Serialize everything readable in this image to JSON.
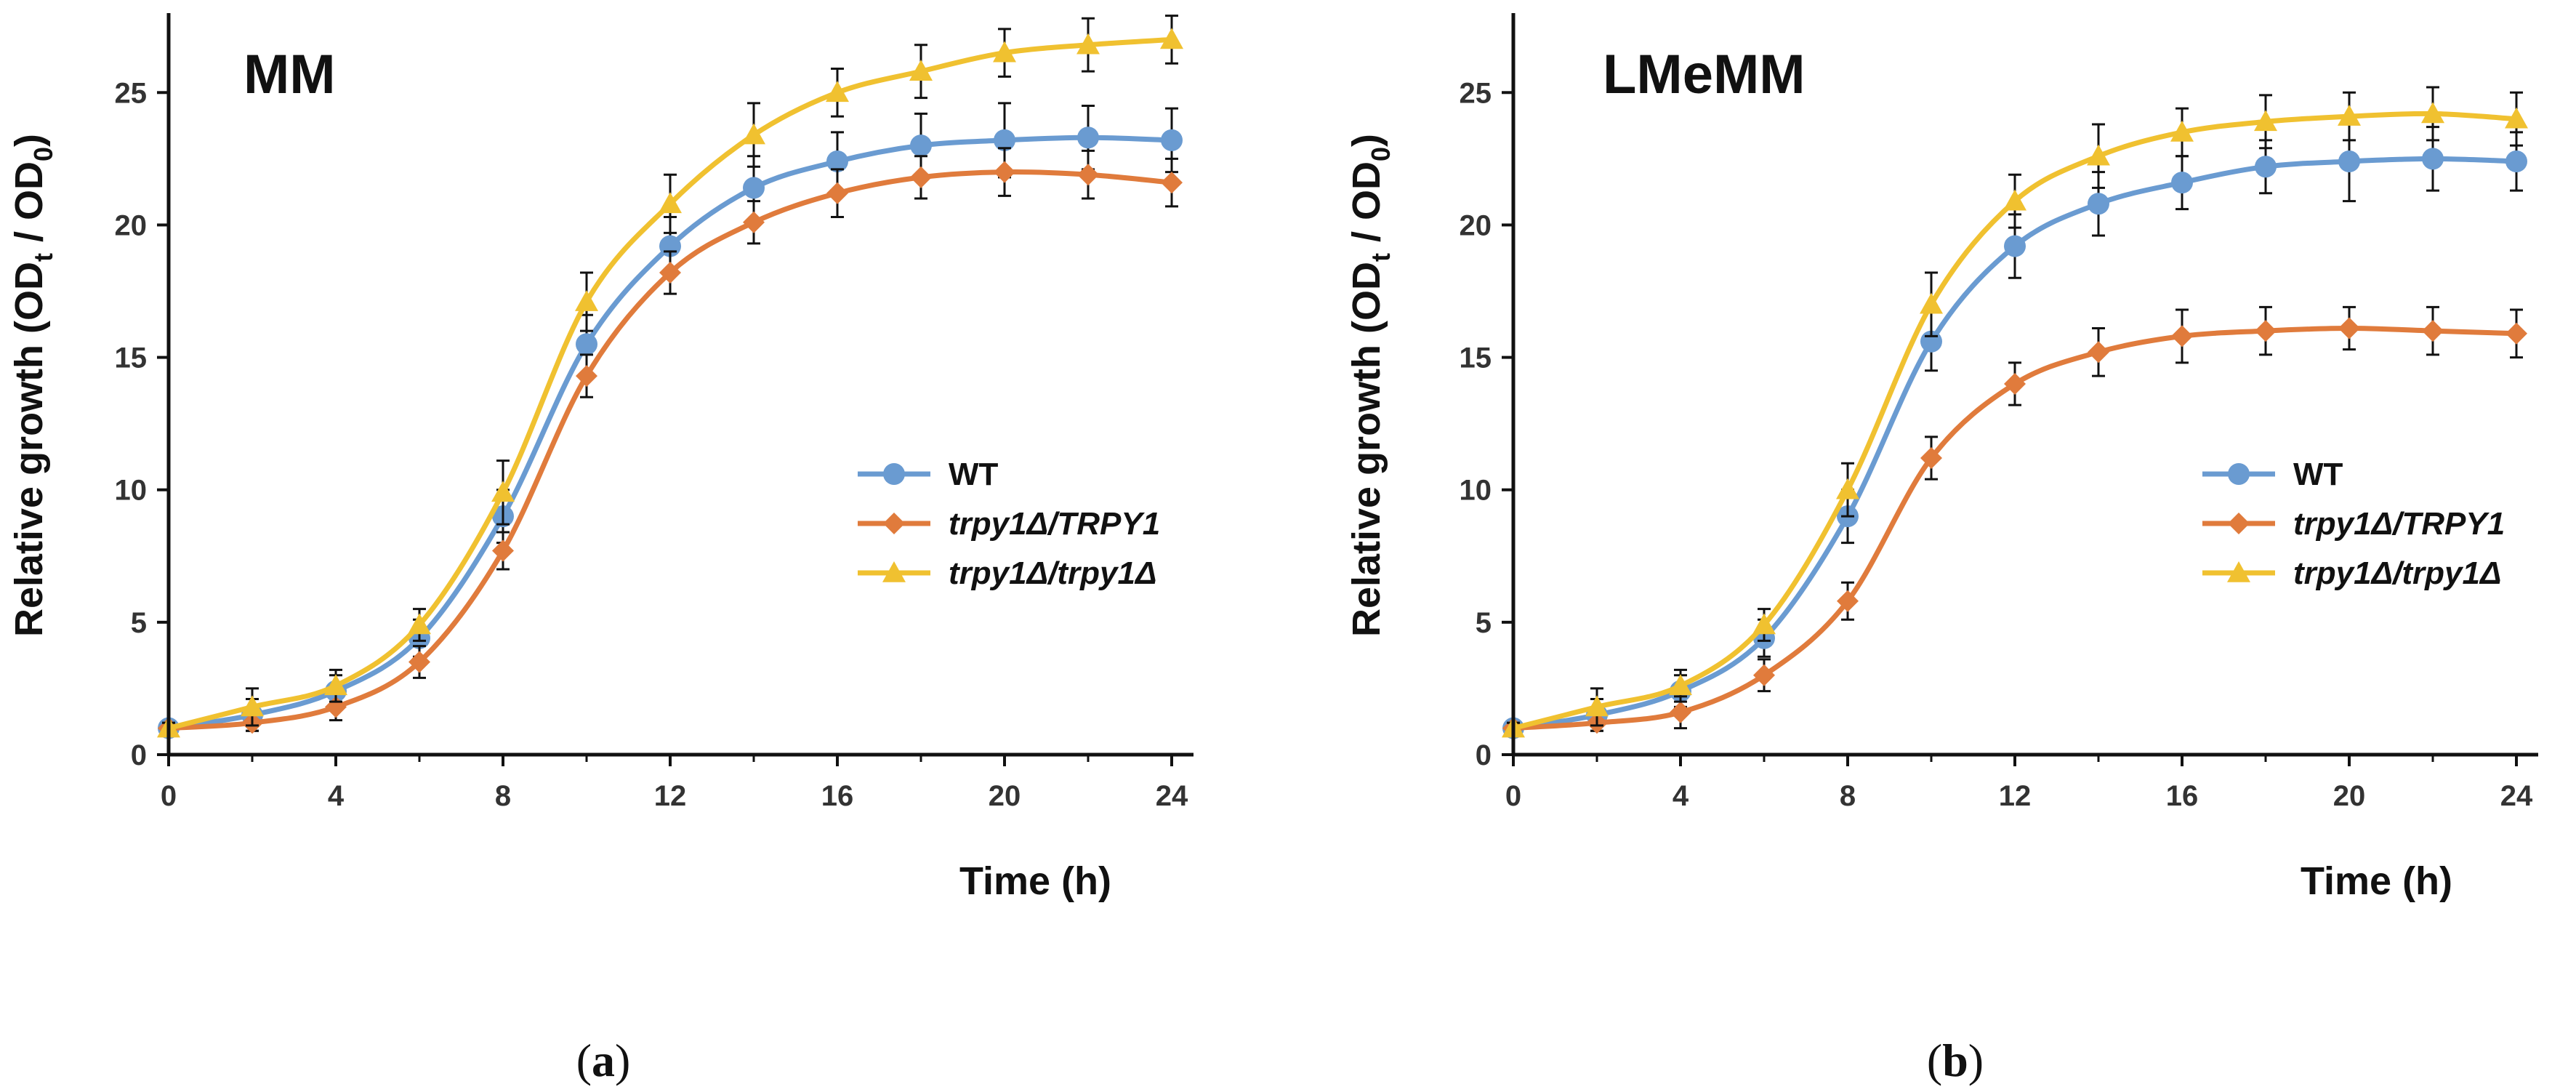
{
  "chart_data": [
    {
      "type": "line",
      "panel": "a",
      "title": "MM",
      "caption_letter": "a",
      "xlabel": "Time (h)",
      "ylabel_prefix": "Relative growth (OD",
      "ylabel_sub1": "t",
      "ylabel_mid": " / OD",
      "ylabel_sub2": "0",
      "ylabel_suffix": ")",
      "xlim": [
        0,
        24
      ],
      "ylim": [
        0,
        28
      ],
      "xticks": [
        0,
        4,
        8,
        12,
        16,
        20,
        24
      ],
      "yticks": [
        0,
        5,
        10,
        15,
        20,
        25
      ],
      "grid": false,
      "legend_position": "center-right",
      "x": [
        0,
        2,
        4,
        6,
        8,
        10,
        12,
        14,
        16,
        18,
        20,
        22,
        24
      ],
      "series": [
        {
          "name": "WT",
          "italic": false,
          "color": "#6a9bd1",
          "marker": "circle",
          "values": [
            1.0,
            1.5,
            2.4,
            4.4,
            9.0,
            15.5,
            19.2,
            21.4,
            22.4,
            23.0,
            23.2,
            23.3,
            23.2
          ],
          "errors": [
            0.2,
            0.6,
            0.6,
            0.7,
            1.0,
            1.1,
            1.1,
            1.2,
            1.1,
            1.2,
            1.4,
            1.2,
            1.2
          ]
        },
        {
          "name": "trpy1Δ/TRPY1",
          "italic": true,
          "color": "#e07b3c",
          "marker": "diamond",
          "values": [
            1.0,
            1.2,
            1.8,
            3.5,
            7.7,
            14.3,
            18.2,
            20.1,
            21.2,
            21.8,
            22.0,
            21.9,
            21.6
          ],
          "errors": [
            0.2,
            0.3,
            0.5,
            0.6,
            0.7,
            0.8,
            0.8,
            0.8,
            0.9,
            0.8,
            0.9,
            0.9,
            0.9
          ]
        },
        {
          "name": "trpy1Δ/trpy1Δ",
          "italic": true,
          "color": "#f0c130",
          "marker": "triangle",
          "values": [
            1.0,
            1.8,
            2.6,
            4.9,
            9.9,
            17.1,
            20.8,
            23.4,
            25.0,
            25.8,
            26.5,
            26.8,
            27.0
          ],
          "errors": [
            0.2,
            0.7,
            0.6,
            0.6,
            1.2,
            1.1,
            1.1,
            1.2,
            0.9,
            1.0,
            0.9,
            1.0,
            0.9
          ]
        }
      ]
    },
    {
      "type": "line",
      "panel": "b",
      "title": "LMeMM",
      "caption_letter": "b",
      "xlabel": "Time (h)",
      "ylabel_prefix": "Relative growth (OD",
      "ylabel_sub1": "t",
      "ylabel_mid": " / OD",
      "ylabel_sub2": "0",
      "ylabel_suffix": ")",
      "xlim": [
        0,
        24
      ],
      "ylim": [
        0,
        28
      ],
      "xticks": [
        0,
        4,
        8,
        12,
        16,
        20,
        24
      ],
      "yticks": [
        0,
        5,
        10,
        15,
        20,
        25
      ],
      "grid": false,
      "legend_position": "center-right",
      "x": [
        0,
        2,
        4,
        6,
        8,
        10,
        12,
        14,
        16,
        18,
        20,
        22,
        24
      ],
      "series": [
        {
          "name": "WT",
          "italic": false,
          "color": "#6a9bd1",
          "marker": "circle",
          "values": [
            1.0,
            1.5,
            2.4,
            4.4,
            9.0,
            15.6,
            19.2,
            20.8,
            21.6,
            22.2,
            22.4,
            22.5,
            22.4
          ],
          "errors": [
            0.2,
            0.6,
            0.6,
            0.7,
            1.0,
            1.1,
            1.2,
            1.2,
            1.0,
            1.0,
            1.5,
            1.2,
            1.1
          ]
        },
        {
          "name": "trpy1Δ/TRPY1",
          "italic": true,
          "color": "#e07b3c",
          "marker": "diamond",
          "values": [
            1.0,
            1.2,
            1.6,
            3.0,
            5.8,
            11.2,
            14.0,
            15.2,
            15.8,
            16.0,
            16.1,
            16.0,
            15.9
          ],
          "errors": [
            0.2,
            0.3,
            0.6,
            0.6,
            0.7,
            0.8,
            0.8,
            0.9,
            1.0,
            0.9,
            0.8,
            0.9,
            0.9
          ]
        },
        {
          "name": "trpy1Δ/trpy1Δ",
          "italic": true,
          "color": "#f0c130",
          "marker": "triangle",
          "values": [
            1.0,
            1.8,
            2.6,
            4.9,
            10.0,
            17.0,
            20.9,
            22.6,
            23.5,
            23.9,
            24.1,
            24.2,
            24.0
          ],
          "errors": [
            0.2,
            0.7,
            0.6,
            0.6,
            1.0,
            1.2,
            1.0,
            1.2,
            0.9,
            1.0,
            0.9,
            1.0,
            1.0
          ]
        }
      ]
    }
  ]
}
